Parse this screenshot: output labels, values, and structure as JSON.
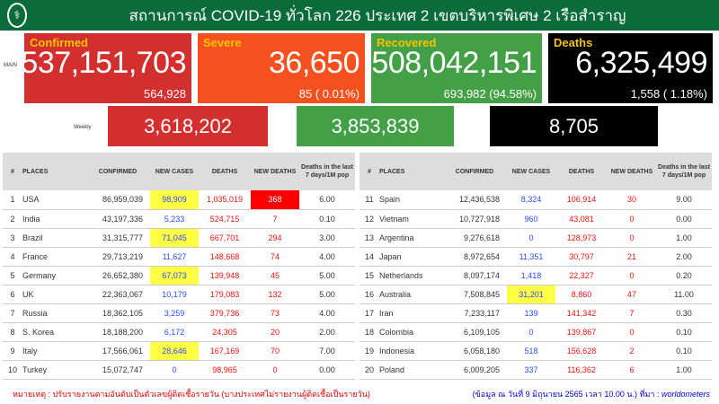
{
  "header": {
    "title": "สถานการณ์ COVID-19 ทั่วโลก 226 ประเทศ 2 เขตบริหารพิเศษ 2 เรือสำราญ",
    "logo_icon": "ministry-of-public-health-seal"
  },
  "main": {
    "label": "MAIN",
    "confirmed": {
      "label": "Confirmed",
      "total": "537,151,703",
      "new": "564,928",
      "color": "#d32f2f"
    },
    "severe": {
      "label": "Severe",
      "total": "36,650",
      "new": "85 ( 0.01%)",
      "color": "#f4511e"
    },
    "recovered": {
      "label": "Recovered",
      "total": "508,042,151",
      "new": "693,982 (94.58%)",
      "color": "#43a047"
    },
    "deaths": {
      "label": "Deaths",
      "total": "6,325,499",
      "new": "1,558 ( 1.18%)",
      "color": "#000000"
    }
  },
  "weekly": {
    "label": "Weekly",
    "confirmed": "3,618,202",
    "recovered": "3,853,839",
    "deaths": "8,705"
  },
  "table": {
    "headers": [
      "#",
      "PLACES",
      "CONFIRMED",
      "NEW CASES",
      "DEATHS",
      "NEW DEATHS",
      "Deaths in the last 7 days/1M pop"
    ],
    "left": [
      [
        "1",
        "USA",
        "86,959,039",
        "98,909",
        "1,035,019",
        "368",
        "6.00",
        "yellow",
        "red"
      ],
      [
        "2",
        "India",
        "43,197,336",
        "5,233",
        "524,715",
        "7",
        "0.10",
        "",
        ""
      ],
      [
        "3",
        "Brazil",
        "31,315,777",
        "71,045",
        "667,701",
        "294",
        "3.00",
        "yellow",
        ""
      ],
      [
        "4",
        "France",
        "29,713,219",
        "11,627",
        "148,668",
        "74",
        "4.00",
        "",
        ""
      ],
      [
        "5",
        "Germany",
        "26,652,380",
        "67,073",
        "139,948",
        "45",
        "5.00",
        "yellow",
        ""
      ],
      [
        "6",
        "UK",
        "22,363,067",
        "10,179",
        "179,083",
        "132",
        "5.00",
        "",
        ""
      ],
      [
        "7",
        "Russia",
        "18,362,105",
        "3,259",
        "379,736",
        "73",
        "4.00",
        "",
        ""
      ],
      [
        "8",
        "S. Korea",
        "18,188,200",
        "6,172",
        "24,305",
        "20",
        "2.00",
        "",
        ""
      ],
      [
        "9",
        "Italy",
        "17,566,061",
        "28,646",
        "167,169",
        "70",
        "7.00",
        "yellow",
        ""
      ],
      [
        "10",
        "Turkey",
        "15,072,747",
        "0",
        "98,965",
        "0",
        "0.00",
        "",
        ""
      ]
    ],
    "right": [
      [
        "11",
        "Spain",
        "12,436,538",
        "8,324",
        "106,914",
        "30",
        "9.00",
        "",
        ""
      ],
      [
        "12",
        "Vietnam",
        "10,727,918",
        "960",
        "43,081",
        "0",
        "0.00",
        "",
        ""
      ],
      [
        "13",
        "Argentina",
        "9,276,618",
        "0",
        "128,973",
        "0",
        "1.00",
        "",
        ""
      ],
      [
        "14",
        "Japan",
        "8,972,654",
        "11,351",
        "30,797",
        "21",
        "2.00",
        "",
        ""
      ],
      [
        "15",
        "Netherlands",
        "8,097,174",
        "1,418",
        "22,327",
        "0",
        "0.20",
        "",
        ""
      ],
      [
        "16",
        "Australia",
        "7,508,845",
        "31,201",
        "8,860",
        "47",
        "11.00",
        "yellow",
        ""
      ],
      [
        "17",
        "Iran",
        "7,233,117",
        "139",
        "141,342",
        "7",
        "0.30",
        "",
        ""
      ],
      [
        "18",
        "Colombia",
        "6,109,105",
        "0",
        "139,867",
        "0",
        "0.10",
        "",
        ""
      ],
      [
        "19",
        "Indonesia",
        "6,058,180",
        "518",
        "156,628",
        "2",
        "0.10",
        "",
        ""
      ],
      [
        "20",
        "Poland",
        "6,009,205",
        "337",
        "116,362",
        "6",
        "1.00",
        "",
        ""
      ]
    ]
  },
  "footer": {
    "note": "หมายเหตุ : ปรับรายงานตามอันดับเป็นตัวเลขผู้ติดเชื้อรายวัน (บางประเทศไม่รายงานผู้ติดเชื้อเป็นรายวัน)",
    "source": "(ข้อมูล ณ วันที่ 9 มิถุนายน 2565 เวลา 10.00 น.) ที่มา : ",
    "source_name": "worldometers"
  }
}
